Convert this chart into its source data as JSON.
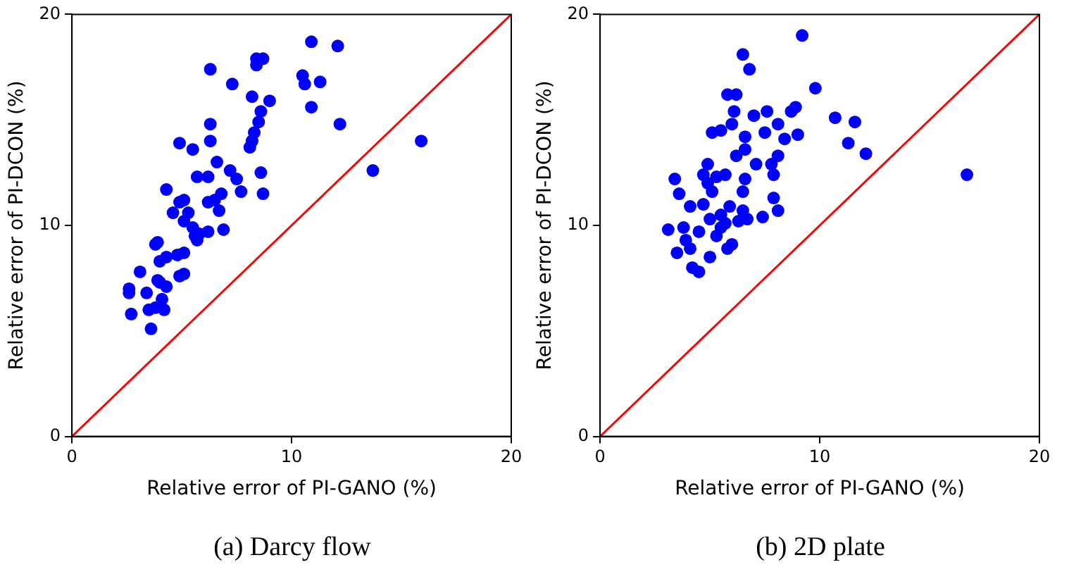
{
  "chart_data": [
    {
      "type": "scatter",
      "title": "(a) Darcy flow",
      "xlabel": "Relative error of PI-GANO (%)",
      "ylabel": "Relative error of PI-DCON (%)",
      "xlim": [
        0,
        20
      ],
      "ylim": [
        0,
        20
      ],
      "xticks": [
        0,
        10,
        20
      ],
      "yticks": [
        0,
        10,
        20
      ],
      "grid": false,
      "legend": false,
      "series": [
        {
          "marker": "circle",
          "color": "#0000ff",
          "x": [
            2.6,
            2.6,
            2.7,
            3.6,
            3.5,
            3.4,
            3.1,
            3.8,
            3.9,
            4.3,
            4.9,
            5.5,
            6.3,
            6.3,
            6.3,
            7.3,
            8.2,
            9.0,
            8.4,
            8.7,
            8.4,
            8.6,
            8.5,
            8.3,
            8.2,
            8.1,
            6.6,
            7.2,
            7.5,
            7.7,
            5.7,
            6.2,
            8.6,
            8.7,
            6.8,
            6.5,
            6.2,
            6.7,
            6.9,
            6.2,
            5.6,
            5.1,
            4.6,
            4.9,
            5.3,
            5.5,
            5.1,
            4.8,
            5.1,
            4.3,
            4.0,
            4.0,
            4.9,
            5.1,
            4.3,
            4.1,
            4.2,
            3.8,
            3.9,
            5.7,
            5.8,
            10.9,
            12.1,
            10.5,
            10.6,
            11.3,
            10.9,
            12.2,
            15.9,
            13.7
          ],
          "values": [
            7.0,
            6.8,
            5.8,
            5.1,
            6.0,
            6.8,
            7.8,
            9.1,
            9.2,
            11.7,
            13.9,
            13.6,
            17.4,
            14.8,
            14.0,
            16.7,
            16.1,
            15.9,
            17.9,
            17.9,
            17.6,
            15.4,
            14.9,
            14.4,
            14.0,
            13.7,
            13.0,
            12.6,
            12.2,
            11.6,
            12.3,
            12.3,
            12.5,
            11.5,
            11.5,
            11.2,
            11.1,
            10.7,
            9.8,
            9.7,
            9.5,
            10.2,
            10.6,
            11.1,
            10.6,
            9.9,
            11.2,
            8.6,
            8.7,
            8.5,
            8.3,
            7.3,
            7.6,
            7.7,
            7.1,
            6.5,
            6.0,
            6.1,
            7.4,
            9.3,
            9.6,
            18.7,
            18.5,
            17.1,
            16.7,
            16.8,
            15.6,
            14.8,
            14.0,
            12.6
          ]
        },
        {
          "type": "line",
          "marker": "none",
          "color": "#ff0000",
          "x": [
            0,
            20
          ],
          "values": [
            0,
            20
          ]
        }
      ]
    },
    {
      "type": "scatter",
      "title": "(b) 2D plate",
      "xlabel": "Relative error of PI-GANO (%)",
      "ylabel": "Relative error of PI-DCON (%)",
      "xlim": [
        0,
        20
      ],
      "ylim": [
        0,
        20
      ],
      "xticks": [
        0,
        10,
        20
      ],
      "yticks": [
        0,
        10,
        20
      ],
      "grid": false,
      "legend": false,
      "series": [
        {
          "marker": "circle",
          "color": "#0000ff",
          "x": [
            9.2,
            6.5,
            6.8,
            9.8,
            5.8,
            6.2,
            6.1,
            7.0,
            7.6,
            8.9,
            8.7,
            5.1,
            5.5,
            6.0,
            6.6,
            7.5,
            8.1,
            8.4,
            9.0,
            8.1,
            7.8,
            7.9,
            3.4,
            3.6,
            4.9,
            4.7,
            5.3,
            5.7,
            6.2,
            6.6,
            7.1,
            6.6,
            6.5,
            5.1,
            4.9,
            4.1,
            4.7,
            5.0,
            5.5,
            5.9,
            6.5,
            6.3,
            6.7,
            5.7,
            7.4,
            7.9,
            8.1,
            3.1,
            3.8,
            4.5,
            5.3,
            5.5,
            3.9,
            3.5,
            4.1,
            5.0,
            5.8,
            6.0,
            4.2,
            4.5,
            16.7,
            10.7,
            11.6,
            11.3,
            12.1
          ],
          "values": [
            19.0,
            18.1,
            17.4,
            16.5,
            16.2,
            16.2,
            15.4,
            15.2,
            15.4,
            15.6,
            15.4,
            14.4,
            14.5,
            14.8,
            14.2,
            14.4,
            14.8,
            14.1,
            14.3,
            13.3,
            12.9,
            12.4,
            12.2,
            11.5,
            12.9,
            12.4,
            12.3,
            12.4,
            13.3,
            13.6,
            12.9,
            12.2,
            11.6,
            11.6,
            12.0,
            10.9,
            11.0,
            10.3,
            10.5,
            10.9,
            10.7,
            10.2,
            10.3,
            10.1,
            10.4,
            11.3,
            10.7,
            9.8,
            9.9,
            9.7,
            9.5,
            9.9,
            9.3,
            8.7,
            8.9,
            8.5,
            8.9,
            9.1,
            8.0,
            7.8,
            12.4,
            15.1,
            14.9,
            13.9,
            13.4
          ]
        },
        {
          "type": "line",
          "marker": "none",
          "color": "#ff0000",
          "x": [
            0,
            20
          ],
          "values": [
            0,
            20
          ]
        }
      ]
    }
  ]
}
